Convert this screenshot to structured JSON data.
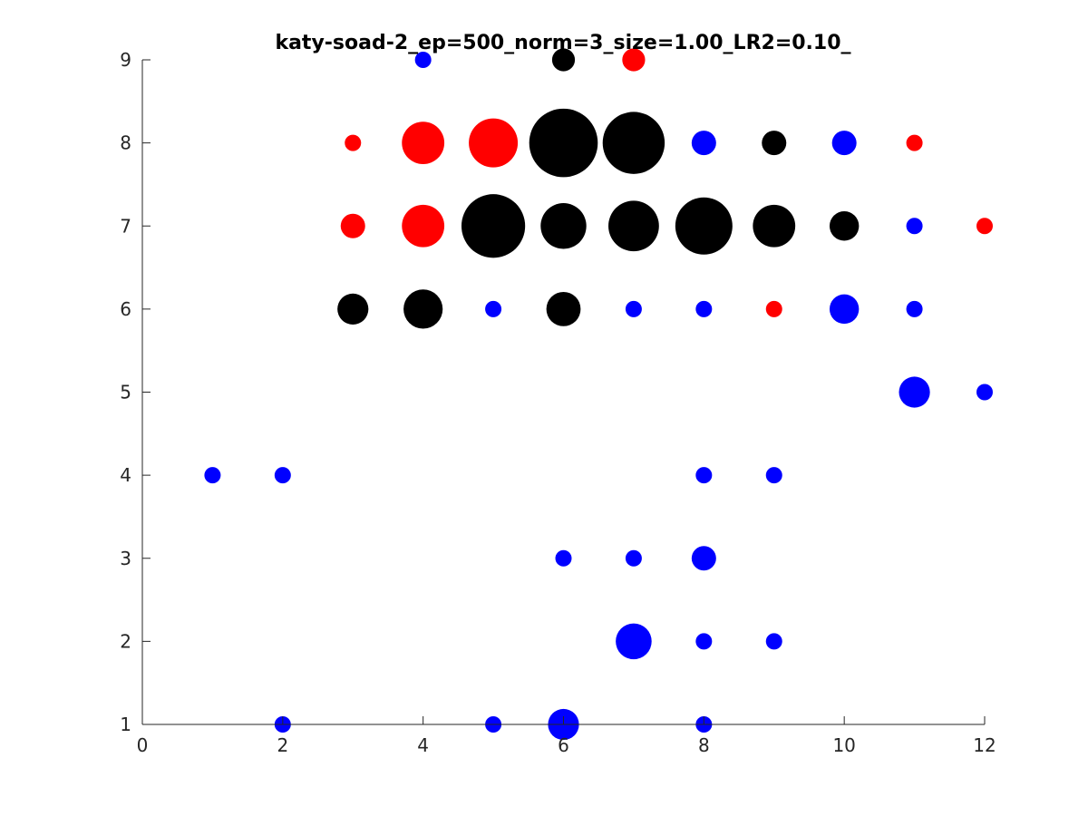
{
  "chart_data": {
    "type": "scatter",
    "title": "katy-soad-2_ep=500_norm=3_size=1.00_LR2=0.10_",
    "xlabel": "",
    "ylabel": "",
    "xlim": [
      0,
      12
    ],
    "ylim": [
      1,
      9
    ],
    "x_ticks": [
      "0",
      "2",
      "4",
      "6",
      "8",
      "10",
      "12"
    ],
    "y_ticks": [
      "1",
      "2",
      "3",
      "4",
      "5",
      "6",
      "7",
      "8",
      "9"
    ],
    "grid": false,
    "legend": false,
    "colors": {
      "blue": "#0000ff",
      "red": "#ff0000",
      "black": "#000000",
      "axis": "#262626"
    },
    "points": [
      {
        "x": 4,
        "y": 9,
        "color": "blue",
        "size": 1.0
      },
      {
        "x": 6,
        "y": 9,
        "color": "black",
        "size": 1.4
      },
      {
        "x": 7,
        "y": 9,
        "color": "red",
        "size": 1.4
      },
      {
        "x": 3,
        "y": 8,
        "color": "red",
        "size": 1.0
      },
      {
        "x": 4,
        "y": 8,
        "color": "red",
        "size": 2.6
      },
      {
        "x": 5,
        "y": 8,
        "color": "red",
        "size": 3.0
      },
      {
        "x": 6,
        "y": 8,
        "color": "black",
        "size": 4.2
      },
      {
        "x": 7,
        "y": 8,
        "color": "black",
        "size": 3.8
      },
      {
        "x": 8,
        "y": 8,
        "color": "blue",
        "size": 1.5
      },
      {
        "x": 9,
        "y": 8,
        "color": "black",
        "size": 1.5
      },
      {
        "x": 10,
        "y": 8,
        "color": "blue",
        "size": 1.5
      },
      {
        "x": 11,
        "y": 8,
        "color": "red",
        "size": 1.0
      },
      {
        "x": 3,
        "y": 7,
        "color": "red",
        "size": 1.5
      },
      {
        "x": 4,
        "y": 7,
        "color": "red",
        "size": 2.6
      },
      {
        "x": 5,
        "y": 7,
        "color": "black",
        "size": 3.9
      },
      {
        "x": 6,
        "y": 7,
        "color": "black",
        "size": 2.8
      },
      {
        "x": 7,
        "y": 7,
        "color": "black",
        "size": 3.1
      },
      {
        "x": 8,
        "y": 7,
        "color": "black",
        "size": 3.5
      },
      {
        "x": 9,
        "y": 7,
        "color": "black",
        "size": 2.6
      },
      {
        "x": 10,
        "y": 7,
        "color": "black",
        "size": 1.8
      },
      {
        "x": 11,
        "y": 7,
        "color": "blue",
        "size": 1.0
      },
      {
        "x": 12,
        "y": 7,
        "color": "red",
        "size": 1.0
      },
      {
        "x": 3,
        "y": 6,
        "color": "black",
        "size": 1.9
      },
      {
        "x": 4,
        "y": 6,
        "color": "black",
        "size": 2.4
      },
      {
        "x": 5,
        "y": 6,
        "color": "blue",
        "size": 1.0
      },
      {
        "x": 6,
        "y": 6,
        "color": "black",
        "size": 2.1
      },
      {
        "x": 7,
        "y": 6,
        "color": "blue",
        "size": 1.0
      },
      {
        "x": 8,
        "y": 6,
        "color": "blue",
        "size": 1.0
      },
      {
        "x": 9,
        "y": 6,
        "color": "red",
        "size": 1.0
      },
      {
        "x": 10,
        "y": 6,
        "color": "blue",
        "size": 1.8
      },
      {
        "x": 11,
        "y": 6,
        "color": "blue",
        "size": 1.0
      },
      {
        "x": 11,
        "y": 5,
        "color": "blue",
        "size": 1.9
      },
      {
        "x": 12,
        "y": 5,
        "color": "blue",
        "size": 1.0
      },
      {
        "x": 1,
        "y": 4,
        "color": "blue",
        "size": 1.0
      },
      {
        "x": 2,
        "y": 4,
        "color": "blue",
        "size": 1.0
      },
      {
        "x": 8,
        "y": 4,
        "color": "blue",
        "size": 1.0
      },
      {
        "x": 9,
        "y": 4,
        "color": "blue",
        "size": 1.0
      },
      {
        "x": 6,
        "y": 3,
        "color": "blue",
        "size": 1.0
      },
      {
        "x": 7,
        "y": 3,
        "color": "blue",
        "size": 1.0
      },
      {
        "x": 8,
        "y": 3,
        "color": "blue",
        "size": 1.5
      },
      {
        "x": 7,
        "y": 2,
        "color": "blue",
        "size": 2.2
      },
      {
        "x": 8,
        "y": 2,
        "color": "blue",
        "size": 1.0
      },
      {
        "x": 9,
        "y": 2,
        "color": "blue",
        "size": 1.0
      },
      {
        "x": 2,
        "y": 1,
        "color": "blue",
        "size": 1.0
      },
      {
        "x": 5,
        "y": 1,
        "color": "blue",
        "size": 1.0
      },
      {
        "x": 6,
        "y": 1,
        "color": "blue",
        "size": 1.9
      },
      {
        "x": 8,
        "y": 1,
        "color": "blue",
        "size": 1.0
      }
    ]
  }
}
